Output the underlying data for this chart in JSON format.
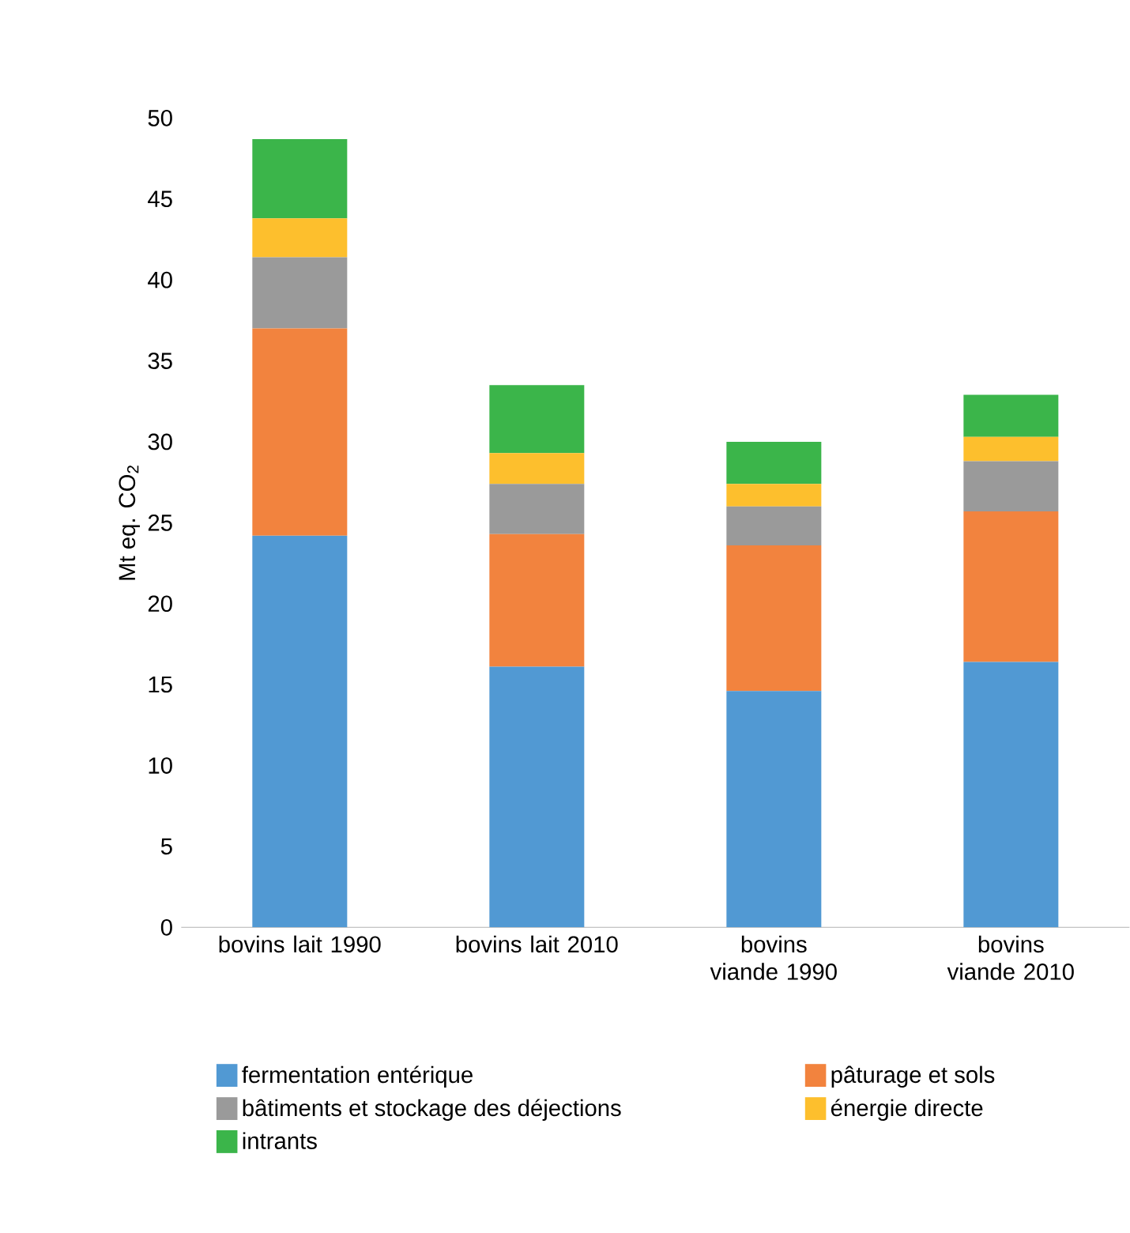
{
  "chart_data": {
    "type": "bar",
    "stacked": true,
    "ylabel": "Mt eq. CO$_{2}$",
    "categories": [
      "bovins lait 1990",
      "bovins lait 2010",
      "bovins viande 1990",
      "bovins viande 2010"
    ],
    "series": [
      {
        "name": "fermentation entérique",
        "color": "#5199d3",
        "values": [
          24.2,
          16.1,
          14.6,
          16.4
        ]
      },
      {
        "name": "pâturage et sols",
        "color": "#f2833e",
        "values": [
          12.8,
          8.2,
          9.0,
          9.3
        ]
      },
      {
        "name": "bâtiments et stockage des déjections",
        "color": "#9a9a9a",
        "values": [
          4.4,
          3.1,
          2.4,
          3.1
        ]
      },
      {
        "name": "énergie directe",
        "color": "#fdbf2d",
        "values": [
          2.4,
          1.9,
          1.4,
          1.5
        ]
      },
      {
        "name": "intrants",
        "color": "#3bb54a",
        "values": [
          4.9,
          4.2,
          2.6,
          2.6
        ]
      }
    ],
    "ylim": [
      0,
      50
    ],
    "yticks": [
      0,
      5,
      10,
      15,
      20,
      25,
      30,
      35,
      40,
      45,
      50
    ],
    "grid": false,
    "legend": "bottom"
  }
}
